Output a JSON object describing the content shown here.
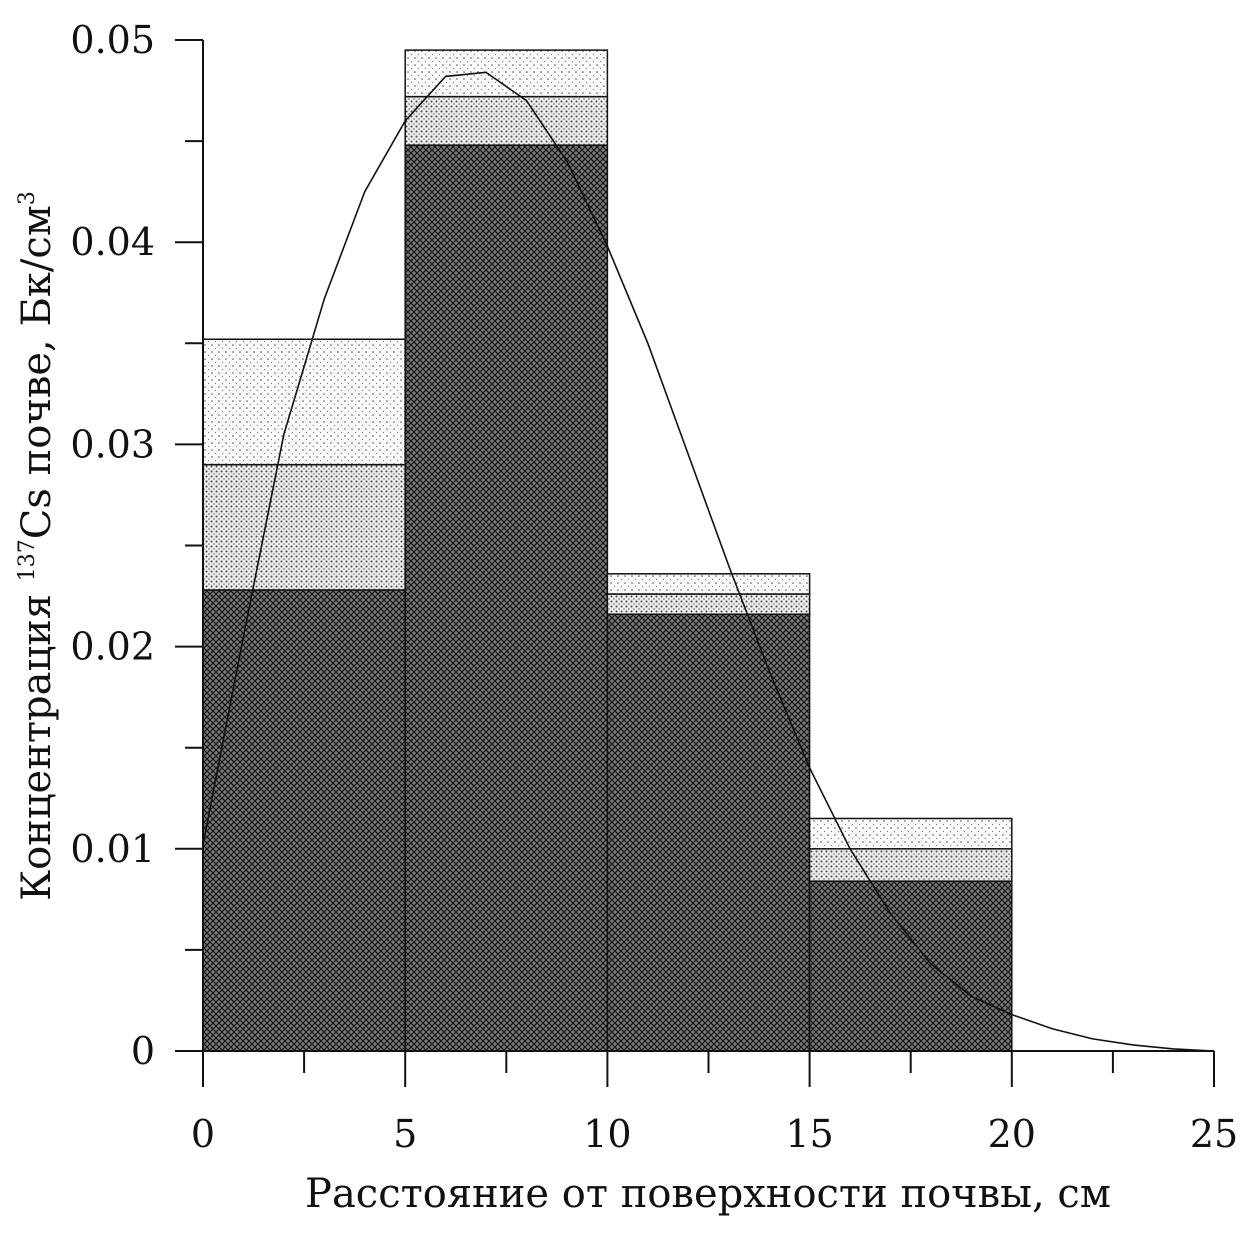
{
  "chart_data": {
    "type": "bar",
    "subtype": "stacked-histogram-with-curve",
    "title": "",
    "xlabel": "Расстояние от поверхности почвы, см",
    "ylabel": {
      "prefix": "Концентрация ",
      "isotope_mass": "137",
      "element": "Cs",
      "middle": " почве, Бк/см",
      "unit_power": "3"
    },
    "xlim": [
      0,
      25
    ],
    "ylim": [
      0,
      0.05
    ],
    "x_ticks": [
      0,
      5,
      10,
      15,
      20,
      25
    ],
    "x_tick_labels": [
      "0",
      "5",
      "10",
      "15",
      "20",
      "25"
    ],
    "x_minor_step": 2.5,
    "y_ticks": [
      0,
      0.01,
      0.02,
      0.03,
      0.04,
      0.05
    ],
    "y_tick_labels": [
      "0",
      "0.01",
      "0.02",
      "0.03",
      "0.04",
      "0.05"
    ],
    "y_minor_step": 0.005,
    "grid": false,
    "bins": [
      {
        "x0": 0,
        "x1": 5,
        "layers": [
          0.0228,
          0.029,
          0.0352
        ]
      },
      {
        "x0": 5,
        "x1": 10,
        "layers": [
          0.0448,
          0.0472,
          0.0495
        ]
      },
      {
        "x0": 10,
        "x1": 15,
        "layers": [
          0.0216,
          0.0226,
          0.0236
        ]
      },
      {
        "x0": 15,
        "x1": 20,
        "layers": [
          0.0084,
          0.01,
          0.0115
        ]
      }
    ],
    "curve": {
      "x": [
        0,
        1,
        2,
        3,
        4,
        5,
        6,
        7,
        8,
        9,
        10,
        11,
        12,
        13,
        14,
        15,
        16,
        17,
        18,
        19,
        20,
        21,
        22,
        23,
        24,
        25
      ],
      "y": [
        0.0102,
        0.0205,
        0.0305,
        0.0372,
        0.0425,
        0.046,
        0.0482,
        0.0484,
        0.047,
        0.044,
        0.0398,
        0.035,
        0.0295,
        0.024,
        0.0188,
        0.014,
        0.01,
        0.0068,
        0.0043,
        0.0027,
        0.0018,
        0.0011,
        0.0006,
        0.0003,
        0.0001,
        0.0
      ]
    },
    "fill_patterns": [
      "dense-crosshatch",
      "medium-dots",
      "fine-dots"
    ],
    "colors": {
      "line": "#111111",
      "background": "#ffffff"
    }
  }
}
